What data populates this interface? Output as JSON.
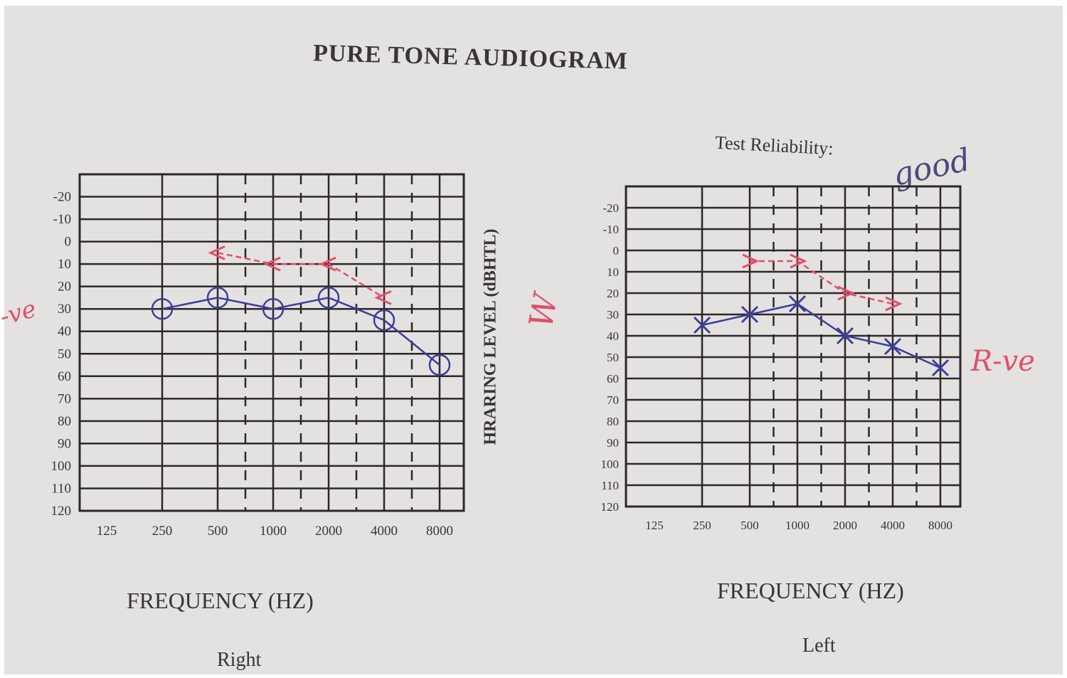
{
  "title": "PURE TONE AUDIOGRAM",
  "test_reliability_label": "Test Reliability:",
  "test_reliability_value": "good",
  "y_axis_label": "HRARING LEVEL (dBHTL)",
  "annotations": {
    "right_margin_note": "-ve",
    "left_margin_note": "R-ve",
    "center_note": "W"
  },
  "colors": {
    "grid": "#2e2628",
    "air": "#3b3f9a",
    "bone": "#e0506a"
  },
  "chart_data": [
    {
      "type": "line",
      "title": "Right",
      "xlabel": "FREQUENCY (HZ)",
      "ylabel": "HRARING LEVEL (dBHTL)",
      "x_ticks": [
        "125",
        "250",
        "500",
        "1000",
        "2000",
        "4000",
        "8000"
      ],
      "y_ticks": [
        "-20",
        "-10",
        "0",
        "10",
        "20",
        "30",
        "40",
        "50",
        "60",
        "70",
        "80",
        "90",
        "100",
        "110",
        "120"
      ],
      "ylim": [
        -30,
        120
      ],
      "y_inverted": true,
      "grid": true,
      "series": [
        {
          "name": "Air conduction (O)",
          "marker": "circle",
          "x": [
            "250",
            "500",
            "1000",
            "2000",
            "4000",
            "8000"
          ],
          "values": [
            30,
            25,
            30,
            25,
            35,
            55
          ]
        },
        {
          "name": "Bone conduction (<)",
          "marker": "<",
          "x": [
            "500",
            "1000",
            "2000",
            "4000"
          ],
          "values": [
            5,
            10,
            10,
            25
          ]
        }
      ]
    },
    {
      "type": "line",
      "title": "Left",
      "xlabel": "FREQUENCY (HZ)",
      "ylabel": "HRARING LEVEL (dBHTL)",
      "x_ticks": [
        "125",
        "250",
        "500",
        "1000",
        "2000",
        "4000",
        "8000"
      ],
      "y_ticks": [
        "-20",
        "-10",
        "0",
        "10",
        "20",
        "30",
        "40",
        "50",
        "60",
        "70",
        "80",
        "90",
        "100",
        "110",
        "120"
      ],
      "ylim": [
        -30,
        120
      ],
      "y_inverted": true,
      "grid": true,
      "series": [
        {
          "name": "Air conduction (X)",
          "marker": "x",
          "x": [
            "250",
            "500",
            "1000",
            "2000",
            "4000",
            "8000"
          ],
          "values": [
            35,
            30,
            25,
            40,
            45,
            55
          ]
        },
        {
          "name": "Bone conduction (>)",
          "marker": ">",
          "x": [
            "500",
            "1000",
            "2000",
            "4000"
          ],
          "values": [
            5,
            5,
            20,
            25
          ]
        }
      ]
    }
  ]
}
